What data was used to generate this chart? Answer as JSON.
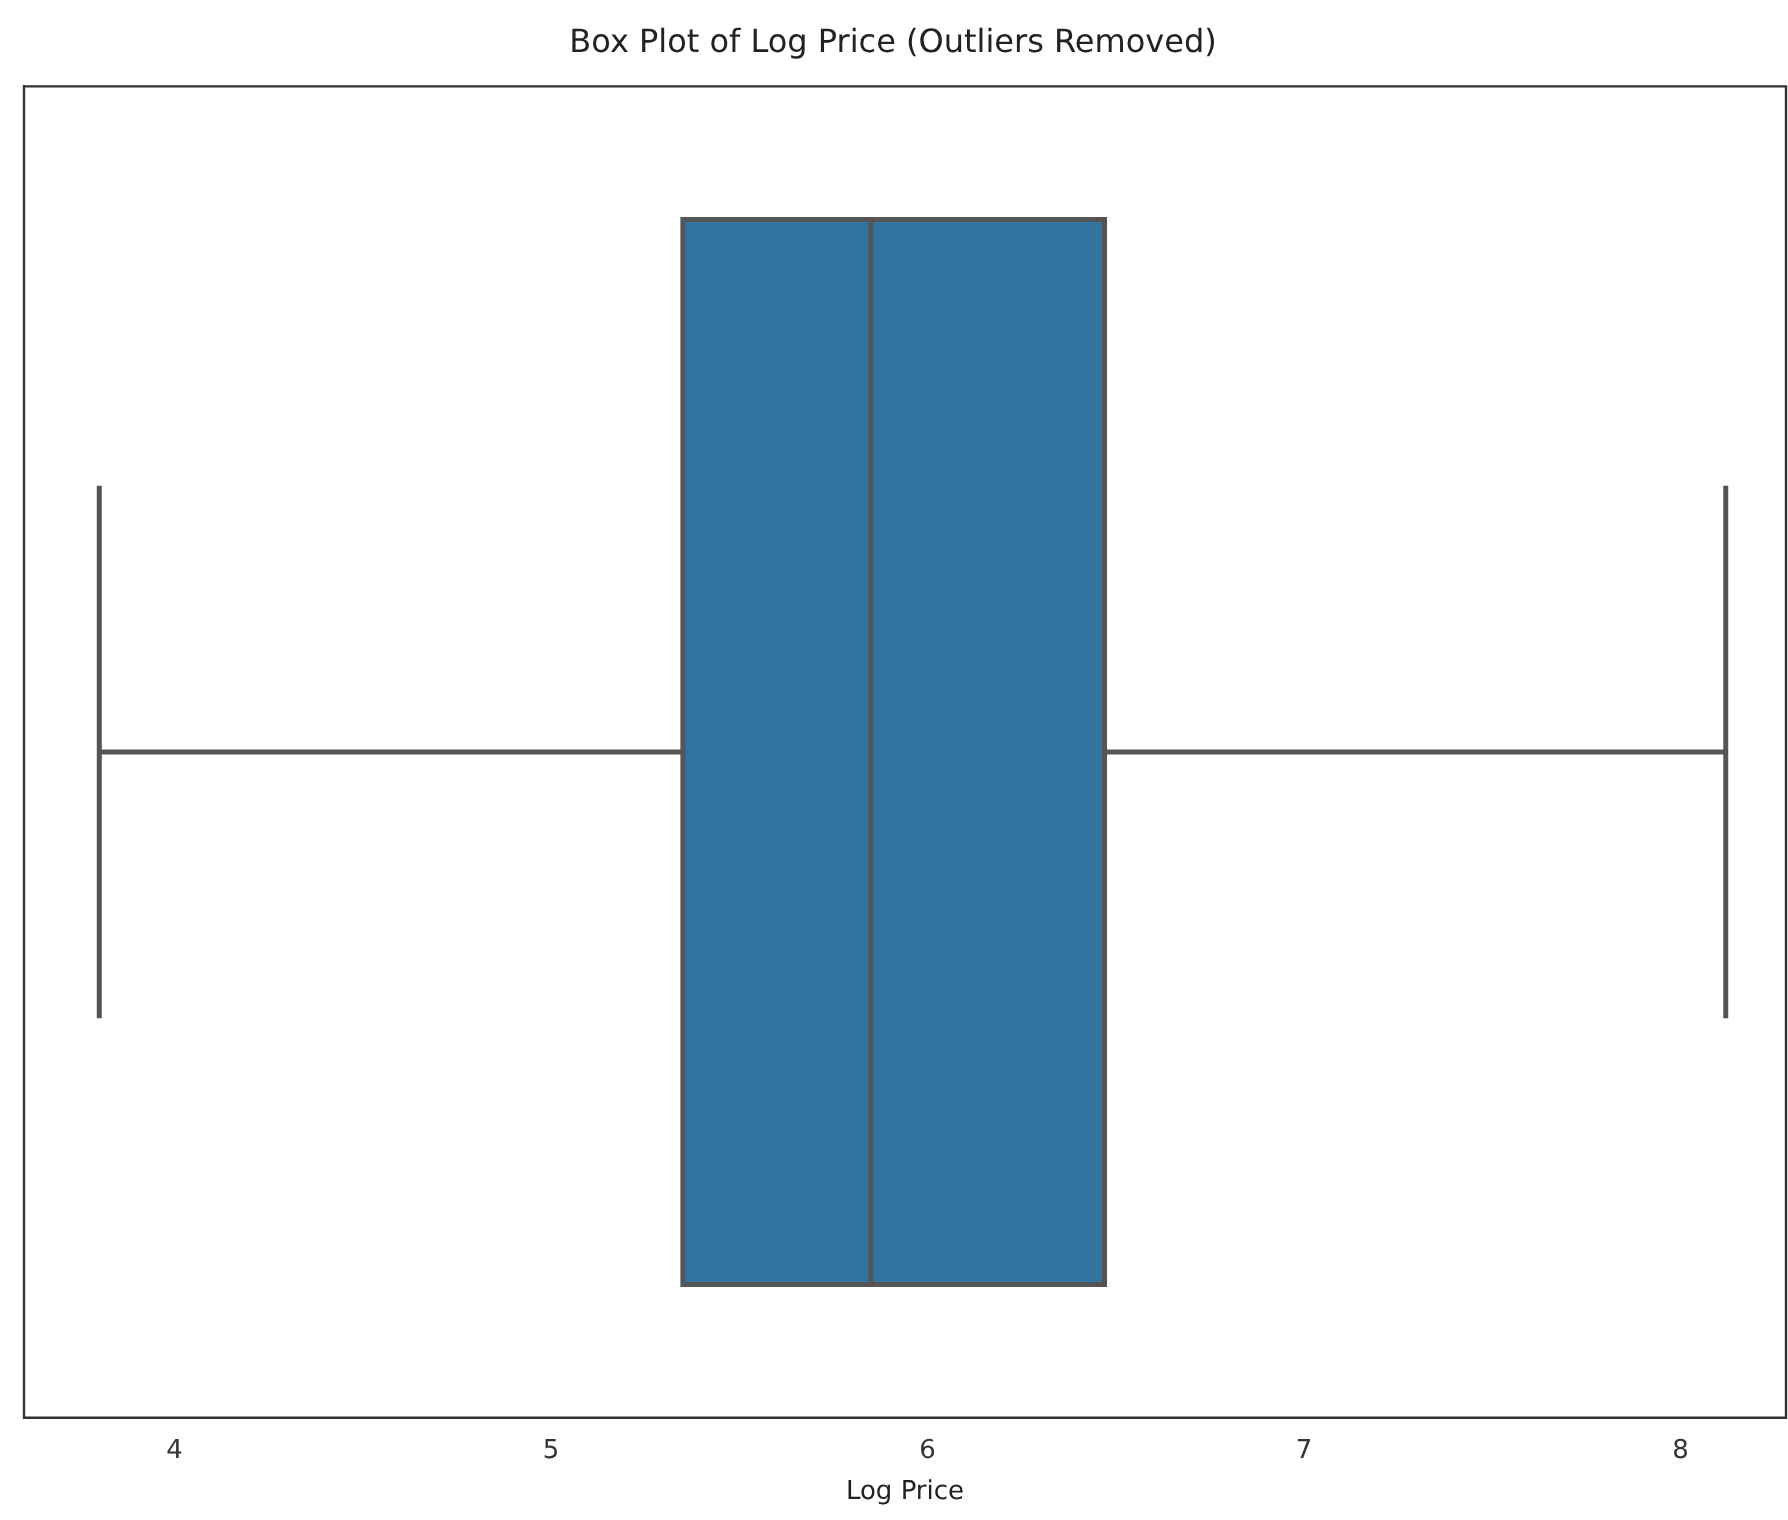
{
  "chart_data": {
    "type": "box",
    "title": "Box Plot of Log Price (Outliers Removed)",
    "xlabel": "Log Price",
    "orientation": "horizontal",
    "categories": [
      null
    ],
    "color": "#3274a1",
    "boxes": [
      {
        "low": 3.8,
        "q1": 5.35,
        "median": 5.85,
        "q3": 6.47,
        "high": 8.12
      }
    ],
    "xlim": [
      3.6,
      8.28
    ],
    "xticks": [
      4,
      5,
      6,
      7,
      8
    ]
  }
}
